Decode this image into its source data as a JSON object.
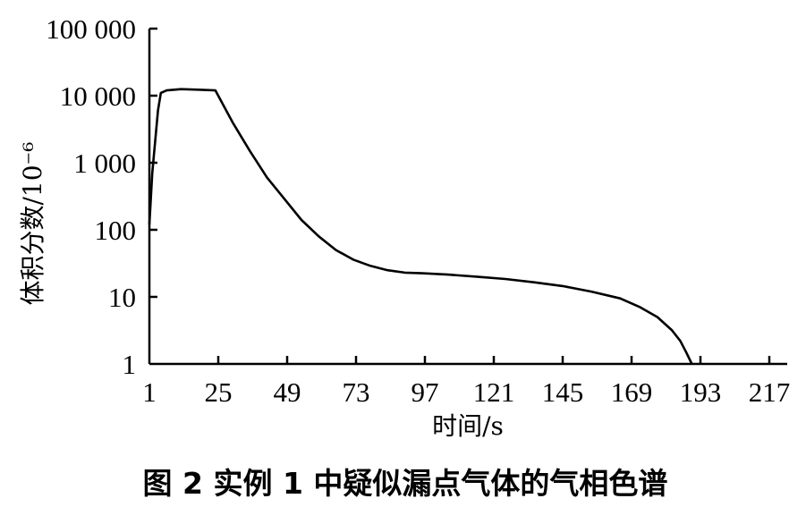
{
  "chart_data": {
    "type": "line",
    "xlabel": "时间/s",
    "ylabel": "体积分数/10⁻⁶",
    "caption": "图 2   实例 1 中疑似漏点气体的气相色谱",
    "x_ticks": [
      1,
      25,
      49,
      73,
      97,
      121,
      145,
      169,
      193,
      217
    ],
    "y_ticks": [
      1,
      10,
      100,
      1000,
      10000,
      100000
    ],
    "y_tick_labels": [
      "1",
      "10",
      "100",
      "1 000",
      "10 000",
      "100 000"
    ],
    "xlim": [
      1,
      225
    ],
    "ylim": [
      1,
      100000
    ],
    "y_scale": "log",
    "grid": false,
    "series": [
      {
        "x": [
          1,
          2,
          4,
          5,
          7,
          12,
          18,
          24,
          30,
          36,
          42,
          48,
          54,
          60,
          66,
          72,
          78,
          84,
          90,
          96,
          105,
          115,
          125,
          135,
          145,
          155,
          165,
          172,
          178,
          183,
          186,
          188,
          190
        ],
        "y": [
          120,
          700,
          6000,
          11000,
          12000,
          12500,
          12300,
          12000,
          4000,
          1500,
          600,
          290,
          140,
          80,
          50,
          36,
          29,
          25,
          23,
          22.5,
          21.5,
          20,
          18.5,
          16.5,
          14.5,
          12,
          9.5,
          7,
          5,
          3.2,
          2.2,
          1.5,
          1
        ]
      }
    ]
  }
}
